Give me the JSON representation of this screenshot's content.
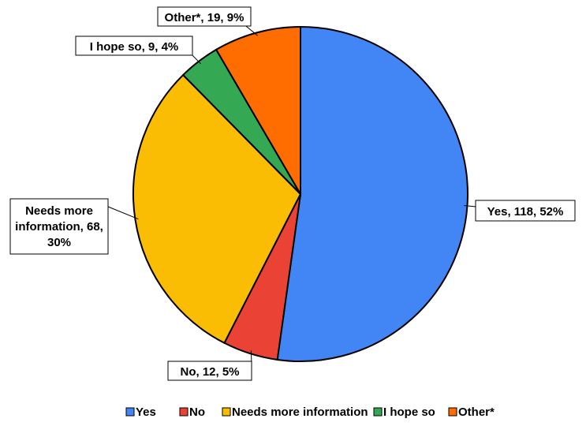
{
  "chart_data": {
    "type": "pie",
    "title": "",
    "slices": [
      {
        "name": "Yes",
        "value": 118,
        "percent": "52%",
        "label": "Yes, 118, 52%",
        "color": "#4285F4"
      },
      {
        "name": "No",
        "value": 12,
        "percent": "5%",
        "label": "No, 12, 5%",
        "color": "#EA4335"
      },
      {
        "name": "Needs more information",
        "value": 68,
        "percent": "30%",
        "label_lines": [
          "Needs more",
          "information, 68,",
          "30%"
        ],
        "color": "#FBBC04"
      },
      {
        "name": "I hope so",
        "value": 9,
        "percent": "4%",
        "label": "I hope so, 9, 4%",
        "color": "#34A853"
      },
      {
        "name": "Other*",
        "value": 19,
        "percent": "9%",
        "label": "Other*, 19, 9%",
        "color": "#FF6D01"
      }
    ],
    "start_angle": "12 o'clock",
    "direction": "clockwise",
    "legend": {
      "position": "bottom",
      "entries": [
        "Yes",
        "No",
        "Needs more information",
        "I hope so",
        "Other*"
      ]
    }
  }
}
